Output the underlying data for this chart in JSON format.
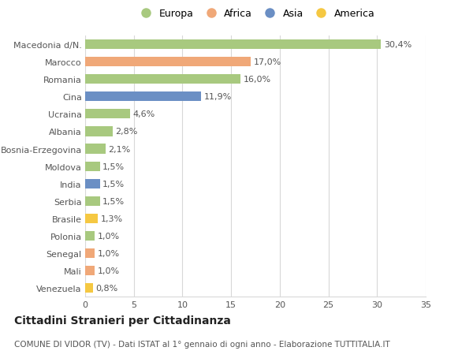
{
  "title": "Cittadini Stranieri per Cittadinanza",
  "subtitle": "COMUNE DI VIDOR (TV) - Dati ISTAT al 1° gennaio di ogni anno - Elaborazione TUTTITALIA.IT",
  "categories": [
    "Macedonia d/N.",
    "Marocco",
    "Romania",
    "Cina",
    "Ucraina",
    "Albania",
    "Bosnia-Erzegovina",
    "Moldova",
    "India",
    "Serbia",
    "Brasile",
    "Polonia",
    "Senegal",
    "Mali",
    "Venezuela"
  ],
  "values": [
    30.4,
    17.0,
    16.0,
    11.9,
    4.6,
    2.8,
    2.1,
    1.5,
    1.5,
    1.5,
    1.3,
    1.0,
    1.0,
    1.0,
    0.8
  ],
  "labels": [
    "30,4%",
    "17,0%",
    "16,0%",
    "11,9%",
    "4,6%",
    "2,8%",
    "2,1%",
    "1,5%",
    "1,5%",
    "1,5%",
    "1,3%",
    "1,0%",
    "1,0%",
    "1,0%",
    "0,8%"
  ],
  "continents": [
    "Europa",
    "Africa",
    "Europa",
    "Asia",
    "Europa",
    "Europa",
    "Europa",
    "Europa",
    "Asia",
    "Europa",
    "America",
    "Europa",
    "Africa",
    "Africa",
    "America"
  ],
  "continent_colors": {
    "Europa": "#a8c97f",
    "Africa": "#f0a878",
    "Asia": "#6b8fc4",
    "America": "#f5c842"
  },
  "legend_order": [
    "Europa",
    "Africa",
    "Asia",
    "America"
  ],
  "xlim": [
    0,
    35
  ],
  "xticks": [
    0,
    5,
    10,
    15,
    20,
    25,
    30,
    35
  ],
  "background_color": "#ffffff",
  "grid_color": "#d8d8d8",
  "bar_height": 0.55,
  "label_fontsize": 8,
  "title_fontsize": 10,
  "subtitle_fontsize": 7.5,
  "legend_fontsize": 9,
  "tick_fontsize": 8
}
